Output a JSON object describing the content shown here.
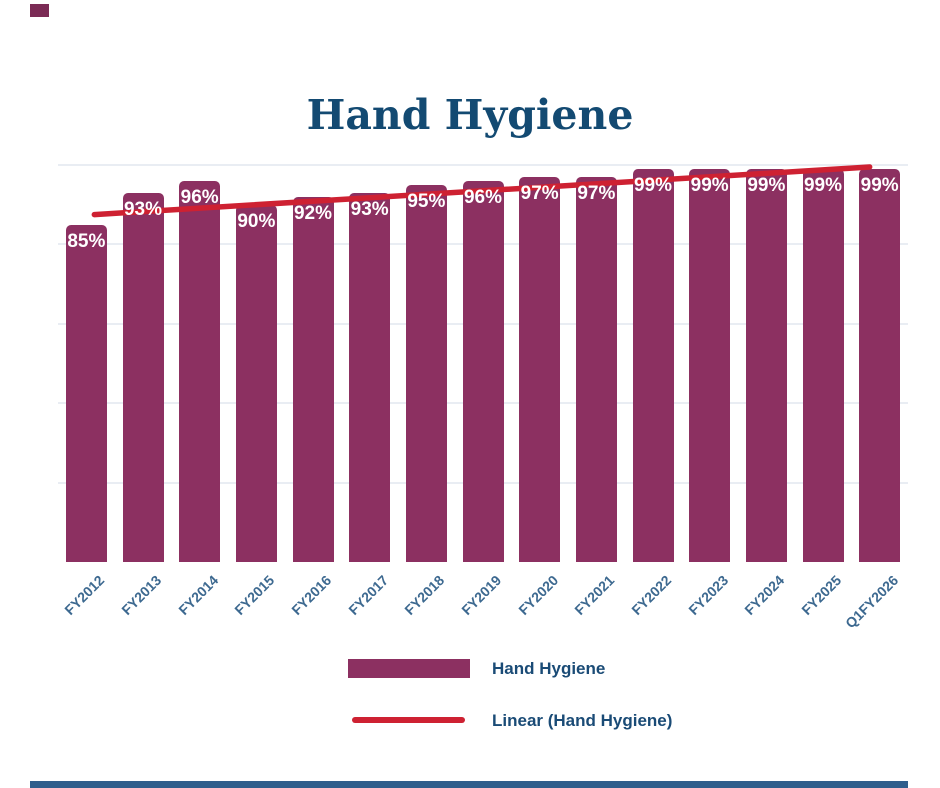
{
  "title": {
    "text": "Hand Hygiene",
    "color": "#134A72"
  },
  "decor": {
    "corner_square_color": "#7B2B55",
    "footer_bar_color": "#2F5E8C"
  },
  "chart_data": {
    "type": "bar",
    "title": "Hand Hygiene",
    "categories": [
      "FY2012",
      "FY2013",
      "FY2014",
      "FY2015",
      "FY2016",
      "FY2017",
      "FY2018",
      "FY2019",
      "FY2020",
      "FY2021",
      "FY2022",
      "FY2023",
      "FY2024",
      "FY2025",
      "Q1FY2026"
    ],
    "values": [
      85,
      93,
      96,
      90,
      92,
      93,
      95,
      96,
      97,
      97,
      99,
      99,
      99,
      99,
      99
    ],
    "bar_labels": [
      "85%",
      "93%",
      "96%",
      "90%",
      "92%",
      "93%",
      "95%",
      "96%",
      "97%",
      "97%",
      "99%",
      "99%",
      "99%",
      "99%",
      "99%"
    ],
    "series_name": "Hand Hygiene",
    "ylim": [
      0,
      100
    ],
    "gridline_values": [
      20,
      40,
      60,
      80,
      100
    ],
    "grid_on": true,
    "xlabel": "",
    "ylabel": "",
    "y_axis_ticks_visible": false,
    "legend_position": "bottom",
    "bar_color": "#8C3061",
    "bar_value_label_color": "#FFFFFF",
    "tick_label_color": "#3D6990",
    "grid_color": "#E9EDF3",
    "trendline": {
      "name": "Linear (Hand Hygiene)",
      "color": "#CE2132",
      "start_value": 87.5,
      "end_value": 99.5
    }
  },
  "legend": {
    "text_color": "#1A4B76",
    "items": [
      {
        "label": "Hand Hygiene",
        "swatch": "bar-swatch"
      },
      {
        "label": "Linear (Hand Hygiene)",
        "swatch": "line-swatch"
      }
    ]
  }
}
